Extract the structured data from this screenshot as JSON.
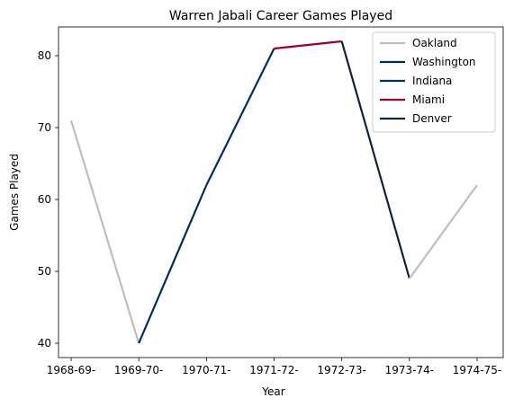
{
  "chart_data": {
    "type": "line",
    "title": "Warren Jabali Career Games Played",
    "xlabel": "Year",
    "ylabel": "Games Played",
    "categories": [
      "1968-69-",
      "1969-70-",
      "1970-71-",
      "1971-72-",
      "1972-73-",
      "1973-74-",
      "1974-75-"
    ],
    "ylim": [
      38,
      84
    ],
    "yticks": [
      40,
      50,
      60,
      70,
      80
    ],
    "grid": false,
    "legend_position": "top-right",
    "series": [
      {
        "name": "Oakland",
        "color": "#bebebe",
        "x": [
          0,
          1
        ],
        "values": [
          71,
          40
        ]
      },
      {
        "name": "Washington",
        "color": "#002b5c",
        "x": [
          1,
          2
        ],
        "values": [
          40,
          62
        ]
      },
      {
        "name": "Indiana",
        "color": "#002d62",
        "x": [
          2,
          3
        ],
        "values": [
          62,
          81
        ]
      },
      {
        "name": "Miami",
        "color": "#98002e",
        "x": [
          3,
          4
        ],
        "values": [
          81,
          82
        ]
      },
      {
        "name": "Denver",
        "color": "#0e2240",
        "x": [
          4,
          5
        ],
        "values": [
          82,
          49
        ]
      },
      {
        "name": "",
        "color": "#bebebe",
        "x": [
          5,
          6
        ],
        "values": [
          49,
          62
        ]
      }
    ]
  }
}
